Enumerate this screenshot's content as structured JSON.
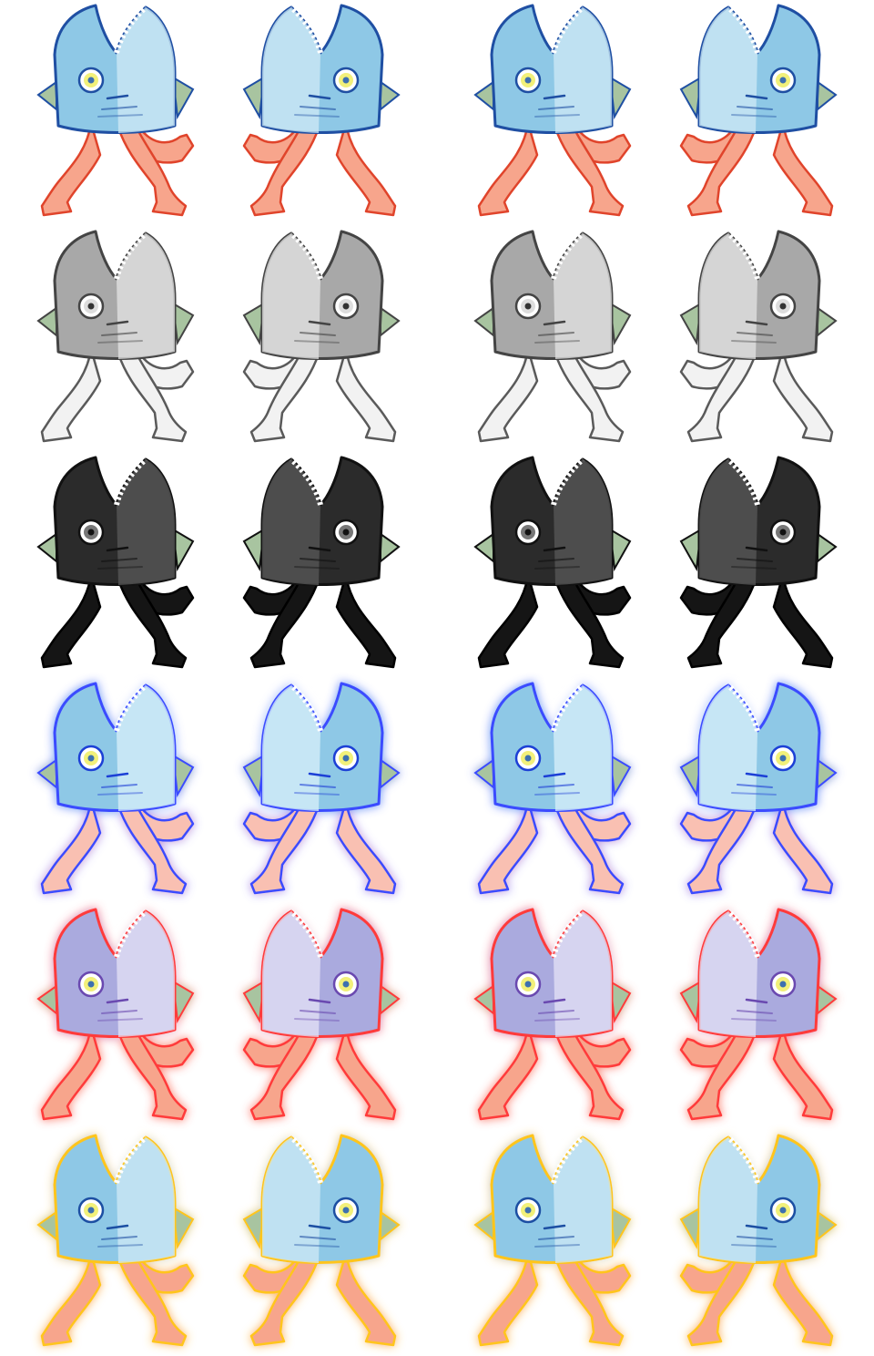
{
  "sheet": {
    "background": "#ffffff",
    "columns": 4,
    "rows": [
      {
        "name": "normal",
        "head": "#8ec8e6",
        "head_light": "#cfeaf6",
        "outline": "#1f4fa3",
        "legs": "#f7a58c",
        "legs_outline": "#e0442b",
        "eye": "#f2f07a",
        "pupil": "#3d6fb0",
        "glow": ""
      },
      {
        "name": "gray",
        "head": "#a8a8a8",
        "head_light": "#e4e4e4",
        "outline": "#444444",
        "legs": "#f2f2f2",
        "legs_outline": "#5a5a5a",
        "eye": "#dddddd",
        "pupil": "#333333",
        "glow": ""
      },
      {
        "name": "black",
        "head": "#2b2b2b",
        "head_light": "#5a5a5a",
        "outline": "#111111",
        "legs": "#151515",
        "legs_outline": "#000000",
        "eye": "#777777",
        "pupil": "#111111",
        "glow": ""
      },
      {
        "name": "blue-glow",
        "head": "#8ec8e6",
        "head_light": "#d8f0fa",
        "outline": "#1f3fd6",
        "legs": "#f9c0b2",
        "legs_outline": "#2a3fd0",
        "eye": "#f2f07a",
        "pupil": "#3d6fb0",
        "glow": "#3a4cff"
      },
      {
        "name": "red-glow",
        "head": "#aaaade",
        "head_light": "#e4e2f6",
        "outline": "#6a4ab0",
        "legs": "#f7a58c",
        "legs_outline": "#e83a2a",
        "eye": "#f2f07a",
        "pupil": "#3d6fb0",
        "glow": "#ff3a3a"
      },
      {
        "name": "yellow-glow",
        "head": "#8ec8e6",
        "head_light": "#cfeaf6",
        "outline": "#1f4fa3",
        "legs": "#f7a58c",
        "legs_outline": "#e0442b",
        "eye": "#f2f07a",
        "pupil": "#3d6fb0",
        "glow": "#ffc51a"
      }
    ],
    "frames": [
      {
        "name": "facing-right"
      },
      {
        "name": "facing-left"
      },
      {
        "name": "facing-right"
      },
      {
        "name": "facing-left"
      }
    ]
  }
}
